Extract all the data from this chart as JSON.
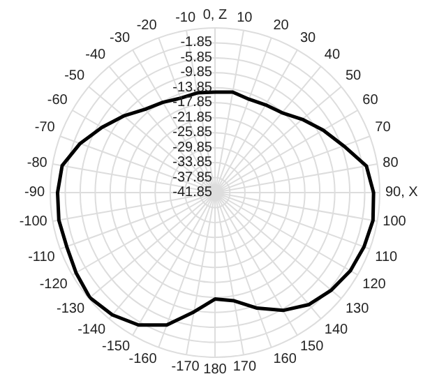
{
  "chart_data": {
    "type": "radar",
    "categories": [
      "0, Z",
      "10",
      "20",
      "30",
      "40",
      "50",
      "60",
      "70",
      "80",
      "90, X",
      "100",
      "110",
      "120",
      "130",
      "140",
      "150",
      "160",
      "170",
      "180",
      "-170",
      "-160",
      "-150",
      "-140",
      "-130",
      "-120",
      "-110",
      "-100",
      "-90",
      "-80",
      "-70",
      "-60",
      "-50",
      "-40",
      "-30",
      "-20",
      "-10"
    ],
    "series": [
      {
        "color": "#000000",
        "values": [
          -15.0,
          -14.6,
          -15.3,
          -14.8,
          -14.0,
          -11.4,
          -8.5,
          -5.3,
          -0.8,
          0.5,
          1.0,
          0.5,
          -0.1,
          -1.3,
          -2.8,
          -5.5,
          -9.0,
          -12.5,
          -13.4,
          -9.5,
          -4.2,
          -1.0,
          0.8,
          1.8,
          1.0,
          0.3,
          0.5,
          0.2,
          -0.4,
          -3.5,
          -7.0,
          -10.0,
          -12.8,
          -14.0,
          -15.0,
          -14.8
        ]
      }
    ],
    "ylim": [
      -41.85,
      2.15
    ],
    "yticks": [
      -41.85,
      -37.85,
      -33.85,
      -29.85,
      -25.85,
      -21.85,
      -17.85,
      -13.85,
      -9.85,
      -5.85,
      -1.85
    ],
    "grid": true,
    "marker": "none",
    "line_style": "solid"
  }
}
